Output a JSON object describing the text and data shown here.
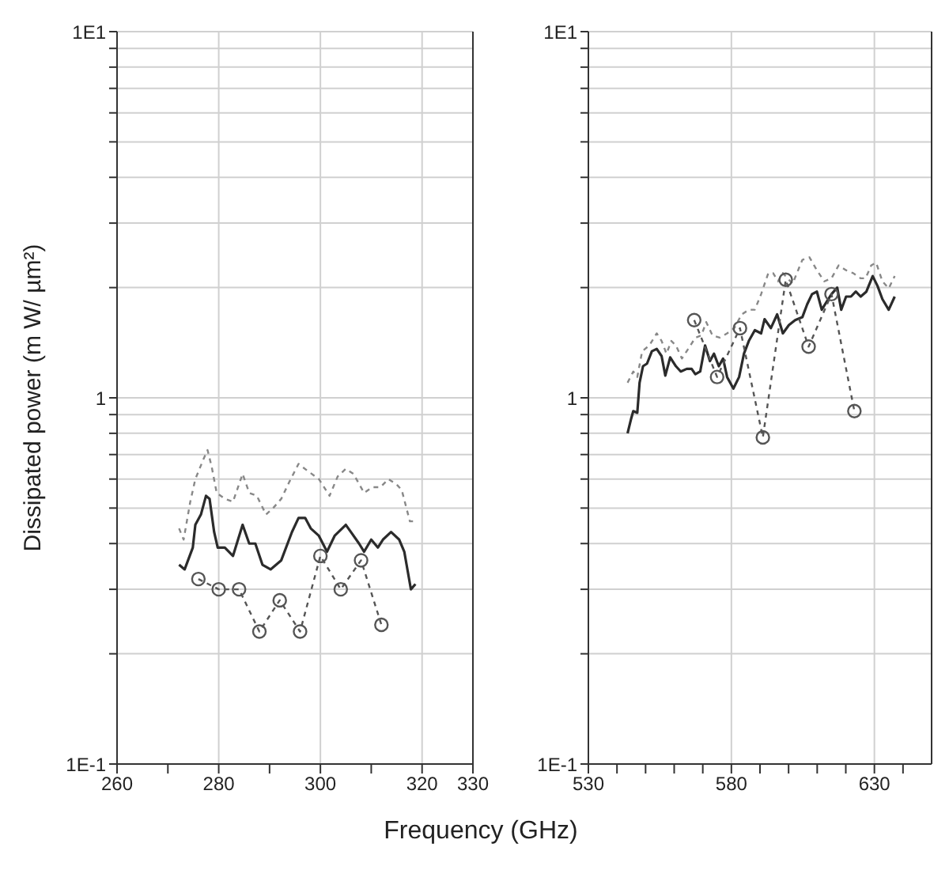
{
  "chart_data": [
    {
      "type": "line",
      "ylabel": "Dissipated power (m W/ µm²)",
      "xlabel": "Frequency (GHz)",
      "log": "y",
      "grid": true,
      "xlim": [
        260,
        330
      ],
      "xticks": [
        260,
        {
          "value": 270,
          "label": null
        },
        280,
        {
          "value": 290,
          "label": null
        },
        300,
        {
          "value": 310,
          "label": null
        },
        320,
        330
      ],
      "ylim": [
        0.1,
        10
      ],
      "yticks": [
        {
          "value": 0.1,
          "label": "1E-1"
        },
        {
          "value": 0.2,
          "label": null
        },
        {
          "value": 0.3,
          "label": null
        },
        {
          "value": 0.4,
          "label": null
        },
        {
          "value": 0.5,
          "label": null
        },
        {
          "value": 0.6,
          "label": null
        },
        {
          "value": 0.7,
          "label": null
        },
        {
          "value": 0.8,
          "label": null
        },
        {
          "value": 0.9,
          "label": null
        },
        1,
        {
          "value": 2,
          "label": null
        },
        {
          "value": 3,
          "label": null
        },
        {
          "value": 4,
          "label": null
        },
        {
          "value": 5,
          "label": null
        },
        {
          "value": 6,
          "label": null
        },
        {
          "value": 7,
          "label": null
        },
        {
          "value": 8,
          "label": null
        },
        {
          "value": 9,
          "label": null
        },
        {
          "value": 10,
          "label": "1E1"
        }
      ],
      "series": [
        {
          "color": "#888888",
          "line_style": "dashed",
          "marker": "none",
          "x": [
            272.2,
            273.1,
            274.4,
            275.4,
            277.0,
            277.8,
            278.6,
            279.6,
            281.2,
            282.8,
            284.7,
            286.0,
            287.5,
            289.3,
            290.7,
            292.3,
            293.9,
            295.7,
            297.6,
            299.7,
            301.8,
            303.4,
            305.0,
            306.5,
            308.6,
            310.2,
            311.8,
            313.4,
            315.0,
            316.0,
            317.6,
            318.7
          ],
          "values": [
            0.44,
            0.41,
            0.52,
            0.6,
            0.68,
            0.72,
            0.65,
            0.55,
            0.53,
            0.52,
            0.62,
            0.55,
            0.54,
            0.48,
            0.5,
            0.53,
            0.59,
            0.66,
            0.63,
            0.6,
            0.54,
            0.61,
            0.64,
            0.62,
            0.55,
            0.57,
            0.57,
            0.6,
            0.58,
            0.56,
            0.46,
            0.46
          ]
        },
        {
          "color": "#2b2b2b",
          "line_style": "solid",
          "marker": "none",
          "x": [
            272.2,
            273.3,
            274.9,
            275.4,
            276.5,
            277.5,
            278.2,
            279.1,
            279.8,
            281.2,
            282.8,
            284.7,
            286.0,
            287.2,
            288.6,
            290.2,
            292.3,
            294.4,
            295.7,
            297.0,
            298.1,
            299.7,
            301.3,
            302.8,
            305.0,
            306.0,
            307.6,
            308.6,
            310.0,
            311.3,
            312.3,
            313.9,
            315.5,
            316.5,
            317.8,
            318.7
          ],
          "values": [
            0.35,
            0.34,
            0.39,
            0.45,
            0.48,
            0.54,
            0.53,
            0.43,
            0.39,
            0.39,
            0.37,
            0.45,
            0.4,
            0.4,
            0.35,
            0.34,
            0.36,
            0.43,
            0.47,
            0.47,
            0.44,
            0.42,
            0.38,
            0.42,
            0.45,
            0.43,
            0.4,
            0.38,
            0.41,
            0.39,
            0.41,
            0.43,
            0.41,
            0.38,
            0.3,
            0.31
          ]
        },
        {
          "color": "#555555",
          "line_style": "dashed",
          "marker": "circle",
          "x": [
            276,
            280,
            284,
            288,
            292,
            296,
            300,
            304,
            308,
            312
          ],
          "values": [
            0.32,
            0.3,
            0.3,
            0.23,
            0.28,
            0.23,
            0.37,
            0.3,
            0.36,
            0.24
          ]
        }
      ]
    },
    {
      "type": "line",
      "log": "y",
      "grid": true,
      "xlim": [
        530,
        650
      ],
      "xticks": [
        530,
        {
          "value": 540,
          "label": null
        },
        {
          "value": 550,
          "label": null
        },
        {
          "value": 560,
          "label": null
        },
        {
          "value": 570,
          "label": null
        },
        580,
        {
          "value": 590,
          "label": null
        },
        {
          "value": 600,
          "label": null
        },
        {
          "value": 610,
          "label": null
        },
        {
          "value": 620,
          "label": null
        },
        630,
        {
          "value": 640,
          "label": null
        }
      ],
      "ylim": [
        0.1,
        10
      ],
      "yticks": [
        {
          "value": 0.1,
          "label": "1E-1"
        },
        {
          "value": 0.2,
          "label": null
        },
        {
          "value": 0.3,
          "label": null
        },
        {
          "value": 0.4,
          "label": null
        },
        {
          "value": 0.5,
          "label": null
        },
        {
          "value": 0.6,
          "label": null
        },
        {
          "value": 0.7,
          "label": null
        },
        {
          "value": 0.8,
          "label": null
        },
        {
          "value": 0.9,
          "label": null
        },
        1,
        {
          "value": 2,
          "label": null
        },
        {
          "value": 3,
          "label": null
        },
        {
          "value": 4,
          "label": null
        },
        {
          "value": 5,
          "label": null
        },
        {
          "value": 6,
          "label": null
        },
        {
          "value": 7,
          "label": null
        },
        {
          "value": 8,
          "label": null
        },
        {
          "value": 9,
          "label": null
        },
        {
          "value": 10,
          "label": "1E1"
        }
      ],
      "series": [
        {
          "color": "#888888",
          "line_style": "dashed",
          "marker": "none",
          "x": [
            543.7,
            545.7,
            547.1,
            548.8,
            551.3,
            553.9,
            555.6,
            557.3,
            559.0,
            560.6,
            562.7,
            564.9,
            567.4,
            569.5,
            571.2,
            573.4,
            575.9,
            578.5,
            581.0,
            583.6,
            586.1,
            588.2,
            590.4,
            592.9,
            594.6,
            596.3,
            598.0,
            601.4,
            604.8,
            607.3,
            609.9,
            612.5,
            615.0,
            617.5,
            620.1,
            622.6,
            625.2,
            626.9,
            628.9,
            630.6,
            632.8,
            635.0,
            637.1
          ],
          "values": [
            1.1,
            1.18,
            1.14,
            1.34,
            1.39,
            1.5,
            1.43,
            1.32,
            1.43,
            1.39,
            1.28,
            1.36,
            1.46,
            1.48,
            1.61,
            1.48,
            1.46,
            1.5,
            1.55,
            1.69,
            1.74,
            1.74,
            1.92,
            2.19,
            2.19,
            2.08,
            2.19,
            2.05,
            2.38,
            2.42,
            2.23,
            2.08,
            2.12,
            2.3,
            2.23,
            2.19,
            2.12,
            2.12,
            2.3,
            2.34,
            2.08,
            1.99,
            2.15
          ]
        },
        {
          "color": "#2b2b2b",
          "line_style": "solid",
          "marker": "none",
          "x": [
            543.7,
            545.0,
            545.7,
            547.1,
            547.9,
            549.1,
            550.5,
            552.2,
            553.9,
            555.6,
            556.9,
            558.6,
            560.6,
            562.3,
            564.4,
            566.1,
            567.4,
            569.1,
            570.8,
            572.5,
            573.9,
            575.6,
            577.1,
            578.5,
            580.7,
            582.7,
            584.4,
            586.1,
            588.2,
            590.4,
            591.6,
            593.8,
            596.0,
            598.0,
            600.1,
            602.3,
            604.8,
            606.5,
            608.2,
            609.9,
            611.6,
            613.3,
            615.0,
            617.0,
            618.4,
            620.1,
            621.8,
            623.5,
            625.2,
            627.2,
            629.4,
            631.1,
            632.8,
            635.0,
            637.1
          ],
          "values": [
            0.8,
            0.88,
            0.92,
            0.91,
            1.1,
            1.22,
            1.24,
            1.34,
            1.36,
            1.3,
            1.15,
            1.29,
            1.22,
            1.18,
            1.2,
            1.2,
            1.16,
            1.18,
            1.39,
            1.26,
            1.32,
            1.22,
            1.28,
            1.14,
            1.06,
            1.14,
            1.32,
            1.43,
            1.53,
            1.5,
            1.64,
            1.55,
            1.69,
            1.5,
            1.58,
            1.63,
            1.66,
            1.8,
            1.92,
            1.95,
            1.74,
            1.83,
            1.92,
            2.0,
            1.74,
            1.89,
            1.89,
            1.95,
            1.89,
            1.95,
            2.15,
            2.02,
            1.86,
            1.74,
            1.89
          ]
        },
        {
          "color": "#555555",
          "line_style": "dashed",
          "marker": "circle",
          "x": [
            567,
            575,
            583,
            591,
            599,
            607,
            615,
            623
          ],
          "values": [
            1.63,
            1.14,
            1.55,
            0.78,
            2.1,
            1.38,
            1.92,
            0.92
          ]
        }
      ]
    }
  ]
}
